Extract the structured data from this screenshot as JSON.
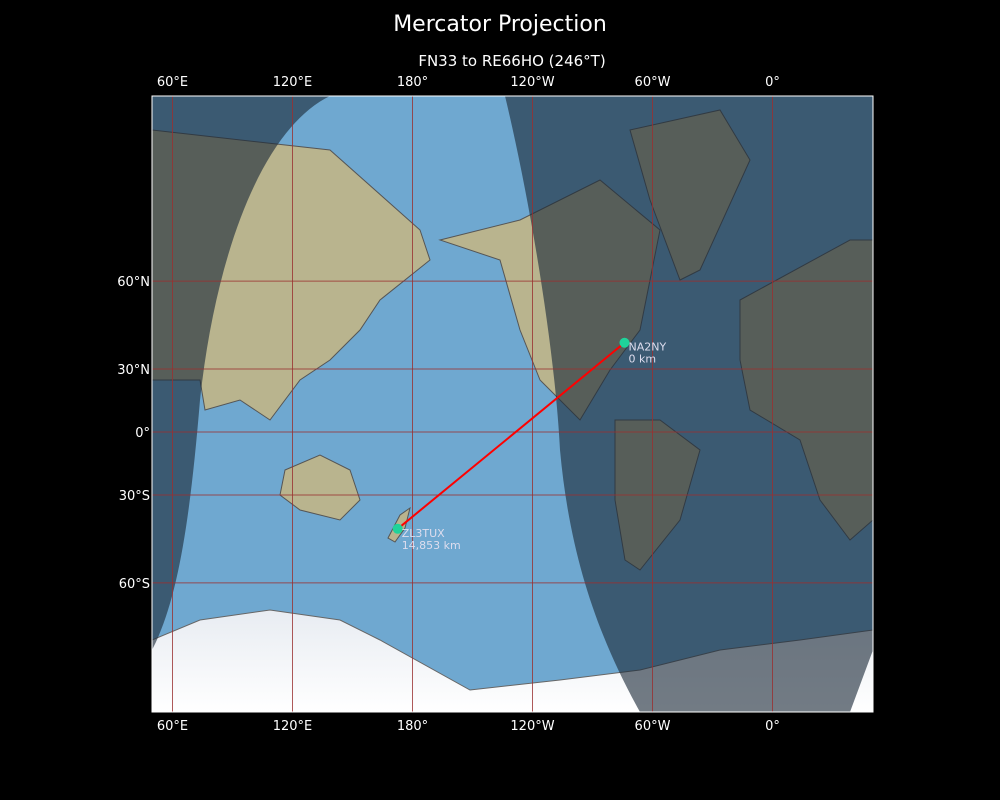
{
  "title": "Mercator Projection",
  "subtitle": "FN33 to RE66HO (246°T)",
  "map": {
    "projection": "Mercator",
    "central_longitude": -130,
    "lon_ticks": [
      {
        "lon": 60,
        "label": "60°E"
      },
      {
        "lon": 120,
        "label": "120°E"
      },
      {
        "lon": 180,
        "label": "180°"
      },
      {
        "lon": 240,
        "label": "120°W"
      },
      {
        "lon": 300,
        "label": "60°W"
      },
      {
        "lon": 360,
        "label": "0°"
      }
    ],
    "lat_ticks": [
      {
        "lat": 60,
        "label": "60°N"
      },
      {
        "lat": 30,
        "label": "30°N"
      },
      {
        "lat": 0,
        "label": "0°"
      },
      {
        "lat": -30,
        "label": "30°S"
      },
      {
        "lat": -60,
        "label": "60°S"
      }
    ],
    "colors": {
      "path": "#ff0000",
      "station": "#1fd39a",
      "grid": "#9a3030",
      "ocean": "#6fa8d0",
      "night": "#2a3440"
    },
    "day_night_overlay": true,
    "stations": [
      {
        "call": "NA2NY",
        "distance": "0 km",
        "lat": 40.7,
        "lon": -74.0
      },
      {
        "call": "ZL3TUX",
        "distance": "14,853 km",
        "lat": -43.5,
        "lon": 172.6
      }
    ]
  }
}
